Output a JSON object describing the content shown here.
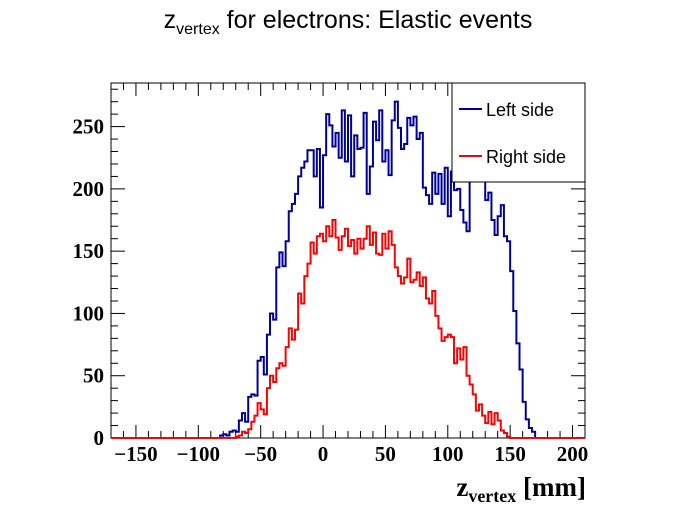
{
  "chart_data": {
    "type": "line",
    "title": {
      "main": "z",
      "sub": "vertex",
      "rest": " for electrons: Elastic events"
    },
    "xlabel": {
      "main": "z",
      "sub": "vertex",
      "rest": " [mm]"
    },
    "ylabel": "",
    "xlim": [
      -170,
      210
    ],
    "ylim": [
      0,
      285
    ],
    "xticks": [
      -150,
      -100,
      -50,
      0,
      50,
      100,
      150,
      200
    ],
    "yticks": [
      0,
      50,
      100,
      150,
      200,
      250
    ],
    "legend": {
      "position": "top-right"
    },
    "bin_width": 2.5,
    "x_start": -170,
    "series": [
      {
        "name": "Left side",
        "color": "#000099",
        "values": [
          0,
          0,
          0,
          0,
          0,
          0,
          0,
          0,
          0,
          0,
          0,
          0,
          0,
          0,
          0,
          0,
          0,
          0,
          0,
          0,
          0,
          0,
          0,
          0,
          0,
          0,
          0,
          0,
          0,
          0,
          0,
          0,
          0,
          0,
          0,
          2,
          3,
          2,
          5,
          6,
          5,
          14,
          20,
          13,
          33,
          35,
          34,
          62,
          65,
          51,
          83,
          100,
          95,
          137,
          149,
          138,
          158,
          182,
          188,
          196,
          210,
          217,
          222,
          231,
          231,
          210,
          232,
          185,
          227,
          260,
          251,
          234,
          245,
          225,
          263,
          222,
          259,
          210,
          243,
          232,
          233,
          261,
          196,
          218,
          254,
          239,
          263,
          222,
          231,
          211,
          255,
          270,
          249,
          232,
          236,
          257,
          251,
          258,
          240,
          245,
          201,
          195,
          188,
          213,
          196,
          212,
          188,
          217,
          178,
          214,
          199,
          200,
          183,
          173,
          166,
          217,
          218,
          207,
          209,
          215,
          191,
          197,
          175,
          163,
          178,
          187,
          162,
          158,
          134,
          102,
          76,
          55,
          29,
          15,
          8,
          5,
          0,
          0,
          0,
          0,
          0,
          0,
          0,
          0,
          0,
          0,
          0,
          0,
          0,
          0,
          0,
          0
        ]
      },
      {
        "name": "Right side",
        "color": "#ff0000",
        "values": [
          0,
          0,
          0,
          0,
          0,
          0,
          0,
          0,
          0,
          0,
          0,
          0,
          0,
          0,
          0,
          0,
          0,
          0,
          0,
          0,
          0,
          0,
          0,
          0,
          0,
          0,
          0,
          0,
          0,
          0,
          0,
          0,
          0,
          0,
          0,
          0,
          0,
          0,
          0,
          0,
          1,
          2,
          5,
          4,
          7,
          13,
          18,
          28,
          23,
          19,
          40,
          50,
          45,
          56,
          60,
          58,
          73,
          88,
          79,
          87,
          116,
          108,
          130,
          140,
          157,
          148,
          162,
          164,
          158,
          170,
          162,
          175,
          161,
          151,
          162,
          168,
          154,
          159,
          148,
          160,
          152,
          160,
          170,
          155,
          165,
          148,
          147,
          164,
          152,
          166,
          155,
          137,
          130,
          124,
          129,
          144,
          125,
          127,
          133,
          122,
          129,
          112,
          108,
          118,
          98,
          88,
          78,
          81,
          83,
          81,
          60,
          72,
          63,
          73,
          50,
          43,
          35,
          22,
          27,
          18,
          12,
          21,
          11,
          20,
          14,
          6,
          4,
          1,
          0,
          0,
          0,
          0,
          0,
          0,
          0,
          0,
          0,
          0,
          0,
          0,
          0,
          0,
          0,
          0,
          0,
          0,
          0,
          0,
          0,
          0,
          0,
          0
        ]
      }
    ]
  }
}
